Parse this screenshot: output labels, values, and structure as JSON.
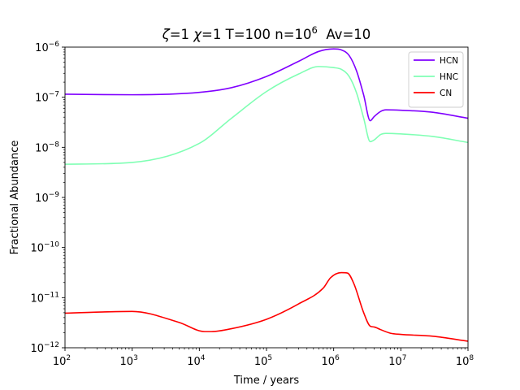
{
  "chart_data": {
    "type": "line",
    "title": {
      "zeta_symbol": "ζ",
      "zeta_value": "=1 ",
      "chi_symbol": "χ",
      "chi_value": "=1 T=100 n=10",
      "n_exponent": "6",
      "av_text": "  Av=10"
    },
    "xlabel": "Time / years",
    "ylabel": "Fractional Abundance",
    "x_scale": "log",
    "y_scale": "log",
    "xlim": [
      100,
      100000000
    ],
    "ylim": [
      1e-12,
      1e-06
    ],
    "x_ticks": [
      {
        "base": "10",
        "exp": "2"
      },
      {
        "base": "10",
        "exp": "3"
      },
      {
        "base": "10",
        "exp": "4"
      },
      {
        "base": "10",
        "exp": "5"
      },
      {
        "base": "10",
        "exp": "6"
      },
      {
        "base": "10",
        "exp": "7"
      },
      {
        "base": "10",
        "exp": "8"
      }
    ],
    "y_ticks": [
      {
        "base": "10",
        "exp": "−12"
      },
      {
        "base": "10",
        "exp": "−11"
      },
      {
        "base": "10",
        "exp": "−10"
      },
      {
        "base": "10",
        "exp": "−9"
      },
      {
        "base": "10",
        "exp": "−8"
      },
      {
        "base": "10",
        "exp": "−7"
      },
      {
        "base": "10",
        "exp": "−6"
      }
    ],
    "legend": "top-right",
    "grid": false,
    "series": [
      {
        "name": "HCN",
        "color": "#8000ff",
        "x": [
          100,
          1000,
          10000,
          30000,
          100000,
          300000,
          600000,
          1000000,
          1300000,
          1700000,
          2200000,
          2800000,
          3500000,
          4000000,
          5000000,
          6000000,
          10000000,
          30000000,
          100000000
        ],
        "y": [
          1.15e-07,
          1.12e-07,
          1.25e-07,
          1.55e-07,
          2.6e-07,
          5.2e-07,
          8.2e-07,
          9.2e-07,
          8.8e-07,
          6.8e-07,
          3.3e-07,
          1.1e-07,
          3.4e-08,
          4.1e-08,
          5.2e-08,
          5.6e-08,
          5.5e-08,
          5e-08,
          3.8e-08
        ]
      },
      {
        "name": "HNC",
        "color": "#80ffb4",
        "x": [
          100,
          1000,
          10000,
          30000,
          100000,
          300000,
          600000,
          1000000,
          1300000,
          1700000,
          2200000,
          2800000,
          3500000,
          4000000,
          5000000,
          6000000,
          10000000,
          30000000,
          100000000
        ],
        "y": [
          4.6e-09,
          5e-09,
          1.2e-08,
          3.8e-08,
          1.3e-07,
          2.9e-07,
          4.1e-07,
          3.9e-07,
          3.6e-07,
          2.6e-07,
          1.2e-07,
          3.8e-08,
          1.3e-08,
          1.4e-08,
          1.8e-08,
          1.9e-08,
          1.85e-08,
          1.65e-08,
          1.25e-08
        ]
      },
      {
        "name": "CN",
        "color": "#ff0000",
        "x": [
          100,
          1000,
          5000,
          12000,
          15000,
          30000,
          100000,
          300000,
          700000,
          900000,
          1300000,
          1600000,
          2000000,
          2800000,
          3500000,
          4000000,
          5000000,
          7000000,
          10000000,
          30000000,
          100000000
        ],
        "y": [
          4.9e-12,
          5.3e-12,
          3.2e-12,
          2.1e-12,
          2.1e-12,
          2.4e-12,
          3.7e-12,
          7.5e-12,
          1.55e-11,
          2.5e-11,
          3.15e-11,
          3.1e-11,
          1.9e-11,
          5e-12,
          2.7e-12,
          2.6e-12,
          2.3e-12,
          1.95e-12,
          1.85e-12,
          1.7e-12,
          1.35e-12
        ]
      }
    ]
  }
}
